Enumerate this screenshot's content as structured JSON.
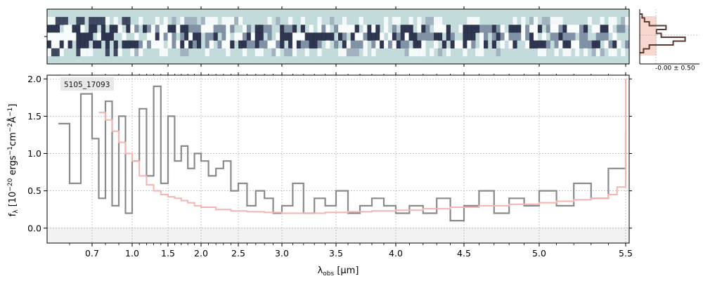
{
  "figure": {
    "object_label": "5105_17093",
    "sidebar_label": "-0.00 ± 0.50"
  },
  "colors": {
    "spectrum": "#8a8a8a",
    "model": "#f4b4b0",
    "twod_background": "#c4dbdb",
    "twod_dark": "#1e2440",
    "profile_line": "#5a3a32",
    "profile_fill": "#f7c6bd",
    "grid": "#b0b0b0"
  },
  "chart_data": [
    {
      "type": "heatmap",
      "description_role": "2D spectrum",
      "xlim": [
        0.5,
        5.52
      ],
      "rows": 7,
      "trace_rows": [
        2,
        3,
        4
      ]
    },
    {
      "type": "line",
      "title": "",
      "xlabel": "λobs [µm]",
      "ylabel": "fλ [10⁻²⁰ ergs⁻¹cm⁻²Å⁻¹]",
      "xscale": "wavelength-stretched",
      "xlim": [
        0.5,
        5.52
      ],
      "ylim": [
        -0.2,
        2.05
      ],
      "grid": true,
      "xticks": [
        0.7,
        1.0,
        1.5,
        2.0,
        2.5,
        3.0,
        3.5,
        4.0,
        4.5,
        5.0,
        5.5
      ],
      "xtick_labels": [
        "0.7",
        "1.0",
        "1.5",
        "2.0",
        "2.5",
        "3.0",
        "3.5",
        "4.0",
        "4.5",
        "5.0",
        "5.5"
      ],
      "yticks": [
        0.0,
        0.5,
        1.0,
        1.5,
        2.0
      ],
      "ytick_labels": [
        "0.0",
        "0.5",
        "1.0",
        "1.5",
        "2.0"
      ],
      "series": [
        {
          "role": "data",
          "x": [
            0.55,
            0.6,
            0.65,
            0.7,
            0.75,
            0.8,
            0.85,
            0.9,
            0.95,
            1.0,
            1.1,
            1.2,
            1.3,
            1.4,
            1.5,
            1.6,
            1.7,
            1.8,
            1.9,
            2.0,
            2.1,
            2.2,
            2.3,
            2.4,
            2.5,
            2.6,
            2.7,
            2.8,
            2.9,
            3.0,
            3.1,
            3.2,
            3.3,
            3.4,
            3.5,
            3.6,
            3.7,
            3.8,
            3.9,
            4.0,
            4.1,
            4.2,
            4.3,
            4.4,
            4.5,
            4.6,
            4.7,
            4.8,
            4.9,
            5.0,
            5.1,
            5.2,
            5.3,
            5.4,
            5.5
          ],
          "y": [
            1.4,
            0.6,
            1.8,
            1.2,
            0.4,
            1.7,
            0.3,
            1.5,
            0.2,
            0.9,
            1.6,
            0.7,
            1.9,
            0.6,
            1.5,
            0.9,
            1.1,
            0.8,
            1.0,
            0.9,
            0.7,
            0.8,
            0.9,
            0.5,
            0.6,
            0.3,
            0.5,
            0.4,
            0.2,
            0.3,
            0.6,
            0.2,
            0.4,
            0.3,
            0.5,
            0.2,
            0.3,
            0.4,
            0.3,
            0.2,
            0.3,
            0.2,
            0.4,
            0.1,
            0.3,
            0.5,
            0.2,
            0.4,
            0.3,
            0.5,
            0.3,
            0.6,
            0.4,
            0.8,
            1.3
          ]
        },
        {
          "role": "model",
          "x": [
            0.75,
            0.8,
            0.85,
            0.9,
            0.95,
            1.0,
            1.1,
            1.2,
            1.3,
            1.4,
            1.5,
            1.6,
            1.7,
            1.8,
            1.9,
            2.0,
            2.2,
            2.4,
            2.6,
            2.8,
            3.0,
            3.2,
            3.4,
            3.6,
            3.8,
            4.0,
            4.2,
            4.4,
            4.6,
            4.8,
            5.0,
            5.1,
            5.2,
            5.3,
            5.4,
            5.45,
            5.5
          ],
          "y": [
            1.55,
            1.45,
            1.3,
            1.15,
            1.0,
            0.9,
            0.7,
            0.58,
            0.5,
            0.45,
            0.42,
            0.4,
            0.37,
            0.34,
            0.3,
            0.28,
            0.25,
            0.23,
            0.22,
            0.21,
            0.2,
            0.2,
            0.21,
            0.22,
            0.23,
            0.24,
            0.26,
            0.28,
            0.3,
            0.32,
            0.34,
            0.36,
            0.38,
            0.4,
            0.45,
            0.55,
            2.0
          ]
        }
      ]
    },
    {
      "type": "line",
      "description_role": "spatial profile",
      "ylim": [
        -3,
        3
      ],
      "values": [
        0.05,
        0.1,
        0.2,
        0.55,
        0.35,
        0.45,
        0.95,
        0.7,
        0.2,
        0.08
      ]
    }
  ]
}
